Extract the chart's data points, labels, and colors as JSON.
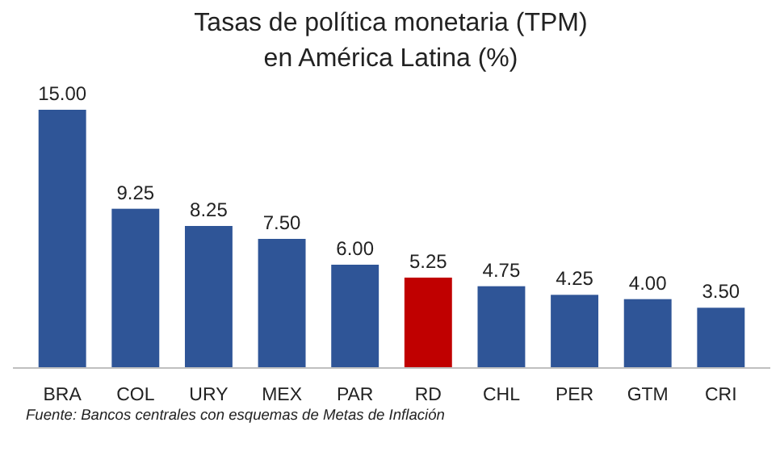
{
  "chart_data": {
    "type": "bar",
    "title": "Tasas de política monetaria (TPM)\nen América Latina (%)",
    "categories": [
      "BRA",
      "COL",
      "URY",
      "MEX",
      "PAR",
      "RD",
      "CHL",
      "PER",
      "GTM",
      "CRI"
    ],
    "values": [
      15,
      9.25,
      8.25,
      7.5,
      6,
      5.25,
      4.75,
      4.25,
      4,
      3.5
    ],
    "colors": [
      "#2f5597",
      "#2f5597",
      "#2f5597",
      "#2f5597",
      "#2f5597",
      "#c00000",
      "#2f5597",
      "#2f5597",
      "#2f5597",
      "#2f5597"
    ],
    "value_labels": [
      "15.00",
      "9.25",
      "8.25",
      "7.50",
      "6.00",
      "5.25",
      "4.75",
      "4.25",
      "4.00",
      "3.50"
    ],
    "annotations": [
      "Fuente: Bancos centrales con esquemas de Metas de Inflación"
    ]
  }
}
